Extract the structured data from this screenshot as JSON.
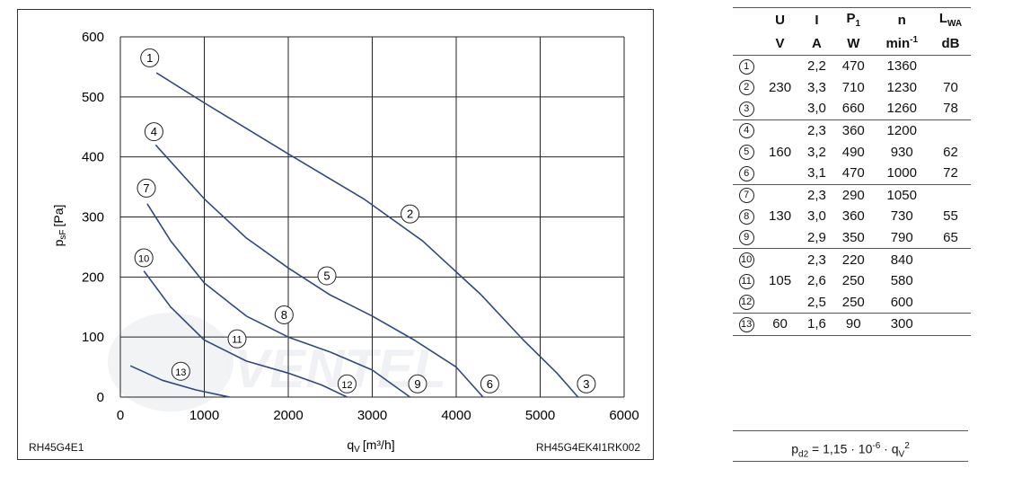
{
  "chart_data": {
    "type": "line",
    "xlabel": "q",
    "xlabel_sub": "V",
    "xlabel_unit": "[m³/h]",
    "ylabel": "p",
    "ylabel_sub": "sF",
    "ylabel_unit": "[Pa]",
    "xlim": [
      0,
      6000
    ],
    "ylim": [
      0,
      600
    ],
    "xticks": [
      0,
      1000,
      2000,
      3000,
      4000,
      5000,
      6000
    ],
    "yticks": [
      0,
      100,
      200,
      300,
      400,
      500,
      600
    ],
    "grid": true,
    "line_color": "#2c4a80",
    "series": [
      {
        "name": "1",
        "x": [
          430,
          1000,
          2000,
          2900
        ],
        "y": [
          540,
          490,
          405,
          330
        ]
      },
      {
        "name": "2",
        "x": [
          2900,
          3600,
          4300
        ],
        "y": [
          330,
          260,
          170
        ]
      },
      {
        "name": "3",
        "x": [
          4300,
          4800,
          5200,
          5450
        ],
        "y": [
          170,
          95,
          40,
          0
        ]
      },
      {
        "name": "4",
        "x": [
          420,
          1000,
          1500,
          2000
        ],
        "y": [
          420,
          330,
          265,
          215
        ]
      },
      {
        "name": "5",
        "x": [
          2000,
          2500,
          3000
        ],
        "y": [
          215,
          170,
          135
        ]
      },
      {
        "name": "6",
        "x": [
          3000,
          3500,
          4000,
          4320
        ],
        "y": [
          135,
          95,
          50,
          0
        ]
      },
      {
        "name": "7",
        "x": [
          320,
          600,
          1000,
          1500
        ],
        "y": [
          322,
          260,
          190,
          135
        ]
      },
      {
        "name": "8",
        "x": [
          1500,
          2000,
          2500
        ],
        "y": [
          135,
          100,
          75
        ]
      },
      {
        "name": "9",
        "x": [
          2500,
          3000,
          3450
        ],
        "y": [
          75,
          45,
          0
        ]
      },
      {
        "name": "10",
        "x": [
          280,
          600,
          1000
        ],
        "y": [
          210,
          150,
          95
        ]
      },
      {
        "name": "11",
        "x": [
          1000,
          1500,
          2000
        ],
        "y": [
          95,
          60,
          40
        ]
      },
      {
        "name": "12",
        "x": [
          2000,
          2400,
          2700
        ],
        "y": [
          40,
          20,
          0
        ]
      },
      {
        "name": "13",
        "x": [
          120,
          500,
          900,
          1300
        ],
        "y": [
          52,
          28,
          12,
          0
        ]
      }
    ],
    "curve_labels": [
      {
        "text": "1",
        "x": 350,
        "y": 565
      },
      {
        "text": "4",
        "x": 400,
        "y": 442
      },
      {
        "text": "7",
        "x": 310,
        "y": 348
      },
      {
        "text": "10",
        "x": 280,
        "y": 232
      },
      {
        "text": "13",
        "x": 720,
        "y": 43
      },
      {
        "text": "11",
        "x": 1390,
        "y": 97
      },
      {
        "text": "8",
        "x": 1950,
        "y": 137
      },
      {
        "text": "5",
        "x": 2460,
        "y": 202
      },
      {
        "text": "2",
        "x": 3450,
        "y": 305
      },
      {
        "text": "12",
        "x": 2700,
        "y": 22
      },
      {
        "text": "9",
        "x": 3540,
        "y": 22
      },
      {
        "text": "6",
        "x": 4400,
        "y": 22
      },
      {
        "text": "3",
        "x": 5550,
        "y": 22
      }
    ]
  },
  "codes": {
    "left": "RH45G4E1",
    "right": "RH45G4EK4I1RK002"
  },
  "table": {
    "symbols": {
      "u": "U",
      "i": "I",
      "p": "P",
      "p_sub": "1",
      "n": "n",
      "l": "L",
      "l_sub": "WA"
    },
    "units": {
      "v": "V",
      "a": "A",
      "w": "W",
      "min": "min",
      "min_sup": "-1",
      "db": "dB"
    },
    "rows": [
      {
        "id": "1",
        "u": "",
        "i": "2,2",
        "p": "470",
        "n": "1360",
        "l": ""
      },
      {
        "id": "2",
        "u": "230",
        "i": "3,3",
        "p": "710",
        "n": "1230",
        "l": "70"
      },
      {
        "id": "3",
        "u": "",
        "i": "3,0",
        "p": "660",
        "n": "1260",
        "l": "78"
      },
      {
        "id": "4",
        "u": "",
        "i": "2,3",
        "p": "360",
        "n": "1200",
        "l": ""
      },
      {
        "id": "5",
        "u": "160",
        "i": "3,2",
        "p": "490",
        "n": "930",
        "l": "62"
      },
      {
        "id": "6",
        "u": "",
        "i": "3,1",
        "p": "470",
        "n": "1000",
        "l": "72"
      },
      {
        "id": "7",
        "u": "",
        "i": "2,3",
        "p": "290",
        "n": "1050",
        "l": ""
      },
      {
        "id": "8",
        "u": "130",
        "i": "3,0",
        "p": "360",
        "n": "730",
        "l": "55"
      },
      {
        "id": "9",
        "u": "",
        "i": "2,9",
        "p": "350",
        "n": "790",
        "l": "65"
      },
      {
        "id": "10",
        "u": "",
        "i": "2,3",
        "p": "220",
        "n": "840",
        "l": ""
      },
      {
        "id": "11",
        "u": "105",
        "i": "2,6",
        "p": "250",
        "n": "580",
        "l": ""
      },
      {
        "id": "12",
        "u": "",
        "i": "2,5",
        "p": "250",
        "n": "600",
        "l": ""
      },
      {
        "id": "13",
        "u": "60",
        "i": "1,6",
        "p": "90",
        "n": "300",
        "l": ""
      }
    ]
  },
  "formula": {
    "lhs": "p",
    "lhs_sub": "d2",
    "mid": " = 1,15 · 10",
    "exp": "-6",
    "dot": " · q",
    "q_sub": "V",
    "q_sup": "2"
  }
}
